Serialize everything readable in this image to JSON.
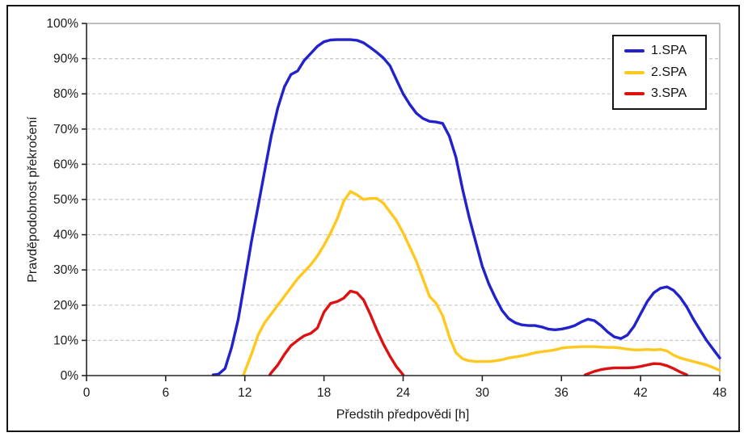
{
  "chart_data": {
    "type": "line",
    "title": "",
    "xlabel": "Předstih předpovědi [h]",
    "ylabel": "Pravděpodobnost překročení",
    "xlim": [
      0,
      48
    ],
    "ylim": [
      0,
      100
    ],
    "grid": "horizontal-dashed",
    "legend_position": "top-right",
    "colors": {
      "grid": "#c8c8c8",
      "plot_border": "#a9a9a9",
      "axis": "#262626",
      "background": "#ffffff"
    },
    "x_ticks": [
      {
        "value": 0,
        "label": "0"
      },
      {
        "value": 6,
        "label": "6"
      },
      {
        "value": 12,
        "label": "12"
      },
      {
        "value": 18,
        "label": "18"
      },
      {
        "value": 24,
        "label": "24"
      },
      {
        "value": 30,
        "label": "30"
      },
      {
        "value": 36,
        "label": "36"
      },
      {
        "value": 42,
        "label": "42"
      },
      {
        "value": 48,
        "label": "48"
      }
    ],
    "y_ticks": [
      {
        "value": 0,
        "label": "0%"
      },
      {
        "value": 10,
        "label": "10%"
      },
      {
        "value": 20,
        "label": "20%"
      },
      {
        "value": 30,
        "label": "30%"
      },
      {
        "value": 40,
        "label": "40%"
      },
      {
        "value": 50,
        "label": "50%"
      },
      {
        "value": 60,
        "label": "60%"
      },
      {
        "value": 70,
        "label": "70%"
      },
      {
        "value": 80,
        "label": "80%"
      },
      {
        "value": 90,
        "label": "90%"
      },
      {
        "value": 100,
        "label": "100%"
      }
    ],
    "series": [
      {
        "name": "1.SPA",
        "color": "#2222cc",
        "segments": [
          [
            [
              9.6,
              0.2
            ],
            [
              10,
              0.4
            ],
            [
              10.5,
              2
            ],
            [
              11,
              8
            ],
            [
              11.5,
              16
            ],
            [
              12,
              27
            ],
            [
              12.5,
              38
            ],
            [
              13,
              48
            ],
            [
              13.5,
              58
            ],
            [
              14,
              68
            ],
            [
              14.5,
              76
            ],
            [
              15,
              82
            ],
            [
              15.5,
              85.5
            ],
            [
              16,
              86.5
            ],
            [
              16.5,
              89.5
            ],
            [
              17,
              91.5
            ],
            [
              17.5,
              93.5
            ],
            [
              18,
              94.8
            ],
            [
              18.5,
              95.3
            ],
            [
              19,
              95.4
            ],
            [
              19.5,
              95.4
            ],
            [
              20,
              95.4
            ],
            [
              20.5,
              95.2
            ],
            [
              21,
              94.5
            ],
            [
              21.5,
              93.2
            ],
            [
              22,
              91.8
            ],
            [
              22.5,
              90.2
            ],
            [
              23,
              88
            ],
            [
              23.5,
              84
            ],
            [
              24,
              80
            ],
            [
              24.5,
              77
            ],
            [
              25,
              74.5
            ],
            [
              25.5,
              73
            ],
            [
              26,
              72.2
            ],
            [
              26.5,
              72
            ],
            [
              27,
              71.6
            ],
            [
              27.5,
              68
            ],
            [
              28,
              62
            ],
            [
              28.5,
              53
            ],
            [
              29,
              45
            ],
            [
              29.5,
              38
            ],
            [
              30,
              31
            ],
            [
              30.5,
              26
            ],
            [
              31,
              22
            ],
            [
              31.5,
              18.5
            ],
            [
              32,
              16.2
            ],
            [
              32.5,
              15
            ],
            [
              33,
              14.4
            ],
            [
              33.5,
              14.2
            ],
            [
              34,
              14.2
            ],
            [
              34.5,
              13.8
            ],
            [
              35,
              13.2
            ],
            [
              35.5,
              13
            ],
            [
              36,
              13.2
            ],
            [
              36.5,
              13.6
            ],
            [
              37,
              14.2
            ],
            [
              37.5,
              15.2
            ],
            [
              38,
              16
            ],
            [
              38.5,
              15.6
            ],
            [
              39,
              14.2
            ],
            [
              39.5,
              12.4
            ],
            [
              40,
              11
            ],
            [
              40.5,
              10.5
            ],
            [
              41,
              11.5
            ],
            [
              41.5,
              14
            ],
            [
              42,
              17.5
            ],
            [
              42.5,
              21
            ],
            [
              43,
              23.5
            ],
            [
              43.5,
              24.8
            ],
            [
              44,
              25.2
            ],
            [
              44.5,
              24.2
            ],
            [
              45,
              22.2
            ],
            [
              45.5,
              19.5
            ],
            [
              46,
              16
            ],
            [
              46.5,
              13
            ],
            [
              47,
              10
            ],
            [
              47.5,
              7.5
            ],
            [
              48,
              5
            ]
          ]
        ]
      },
      {
        "name": "2.SPA",
        "color": "#ffc81e",
        "segments": [
          [
            [
              11.9,
              0.2
            ],
            [
              12.5,
              6
            ],
            [
              13,
              11.5
            ],
            [
              13.5,
              15
            ],
            [
              14,
              17.5
            ],
            [
              14.5,
              20
            ],
            [
              15,
              22.5
            ],
            [
              15.5,
              25
            ],
            [
              16,
              27.5
            ],
            [
              16.5,
              29.5
            ],
            [
              17,
              31.5
            ],
            [
              17.5,
              34
            ],
            [
              18,
              37
            ],
            [
              18.5,
              40.5
            ],
            [
              19,
              44.5
            ],
            [
              19.5,
              49.5
            ],
            [
              20,
              52.3
            ],
            [
              20.5,
              51.3
            ],
            [
              21,
              50
            ],
            [
              21.5,
              50.3
            ],
            [
              22,
              50.3
            ],
            [
              22.5,
              49
            ],
            [
              23,
              46.5
            ],
            [
              23.5,
              44
            ],
            [
              24,
              40.5
            ],
            [
              24.5,
              36.5
            ],
            [
              25,
              32.5
            ],
            [
              25.5,
              27.5
            ],
            [
              26,
              22.5
            ],
            [
              26.5,
              20.5
            ],
            [
              27,
              17
            ],
            [
              27.5,
              11
            ],
            [
              28,
              6.5
            ],
            [
              28.5,
              4.8
            ],
            [
              29,
              4.2
            ],
            [
              29.5,
              4
            ],
            [
              30,
              4
            ],
            [
              30.5,
              4
            ],
            [
              31,
              4.2
            ],
            [
              31.5,
              4.5
            ],
            [
              32,
              5
            ],
            [
              32.5,
              5.3
            ],
            [
              33,
              5.6
            ],
            [
              33.5,
              6
            ],
            [
              34,
              6.5
            ],
            [
              34.5,
              6.8
            ],
            [
              35,
              7
            ],
            [
              35.5,
              7.3
            ],
            [
              36,
              7.8
            ],
            [
              36.5,
              8
            ],
            [
              37,
              8.1
            ],
            [
              37.5,
              8.2
            ],
            [
              38,
              8.2
            ],
            [
              38.5,
              8.2
            ],
            [
              39,
              8.1
            ],
            [
              39.5,
              8
            ],
            [
              40,
              8
            ],
            [
              40.5,
              7.8
            ],
            [
              41,
              7.5
            ],
            [
              41.5,
              7.3
            ],
            [
              42,
              7.3
            ],
            [
              42.5,
              7.4
            ],
            [
              43,
              7.3
            ],
            [
              43.5,
              7.4
            ],
            [
              44,
              7
            ],
            [
              44.5,
              5.8
            ],
            [
              45,
              5
            ],
            [
              45.5,
              4.5
            ],
            [
              46,
              4
            ],
            [
              46.5,
              3.5
            ],
            [
              47,
              3
            ],
            [
              47.5,
              2.3
            ],
            [
              48,
              1.5
            ]
          ]
        ]
      },
      {
        "name": "3.SPA",
        "color": "#dd1111",
        "segments": [
          [
            [
              13.9,
              0.2
            ],
            [
              14,
              0.8
            ],
            [
              14.5,
              3
            ],
            [
              15,
              6
            ],
            [
              15.5,
              8.5
            ],
            [
              16,
              10
            ],
            [
              16.5,
              11.3
            ],
            [
              17,
              12
            ],
            [
              17.5,
              13.5
            ],
            [
              18,
              18
            ],
            [
              18.5,
              20.5
            ],
            [
              19,
              21
            ],
            [
              19.5,
              22
            ],
            [
              20,
              24
            ],
            [
              20.5,
              23.5
            ],
            [
              21,
              21.5
            ],
            [
              21.5,
              17.5
            ],
            [
              22,
              13
            ],
            [
              22.5,
              9
            ],
            [
              23,
              5.5
            ],
            [
              23.5,
              2.5
            ],
            [
              24,
              0.2
            ]
          ],
          [
            [
              37.8,
              0.2
            ],
            [
              38,
              0.5
            ],
            [
              38.5,
              1.2
            ],
            [
              39,
              1.7
            ],
            [
              39.5,
              2
            ],
            [
              40,
              2.2
            ],
            [
              40.5,
              2.2
            ],
            [
              41,
              2.2
            ],
            [
              41.5,
              2.3
            ],
            [
              42,
              2.6
            ],
            [
              42.5,
              3
            ],
            [
              43,
              3.4
            ],
            [
              43.5,
              3.3
            ],
            [
              44,
              2.8
            ],
            [
              44.5,
              2
            ],
            [
              45,
              1
            ],
            [
              45.5,
              0.2
            ]
          ]
        ]
      }
    ]
  }
}
